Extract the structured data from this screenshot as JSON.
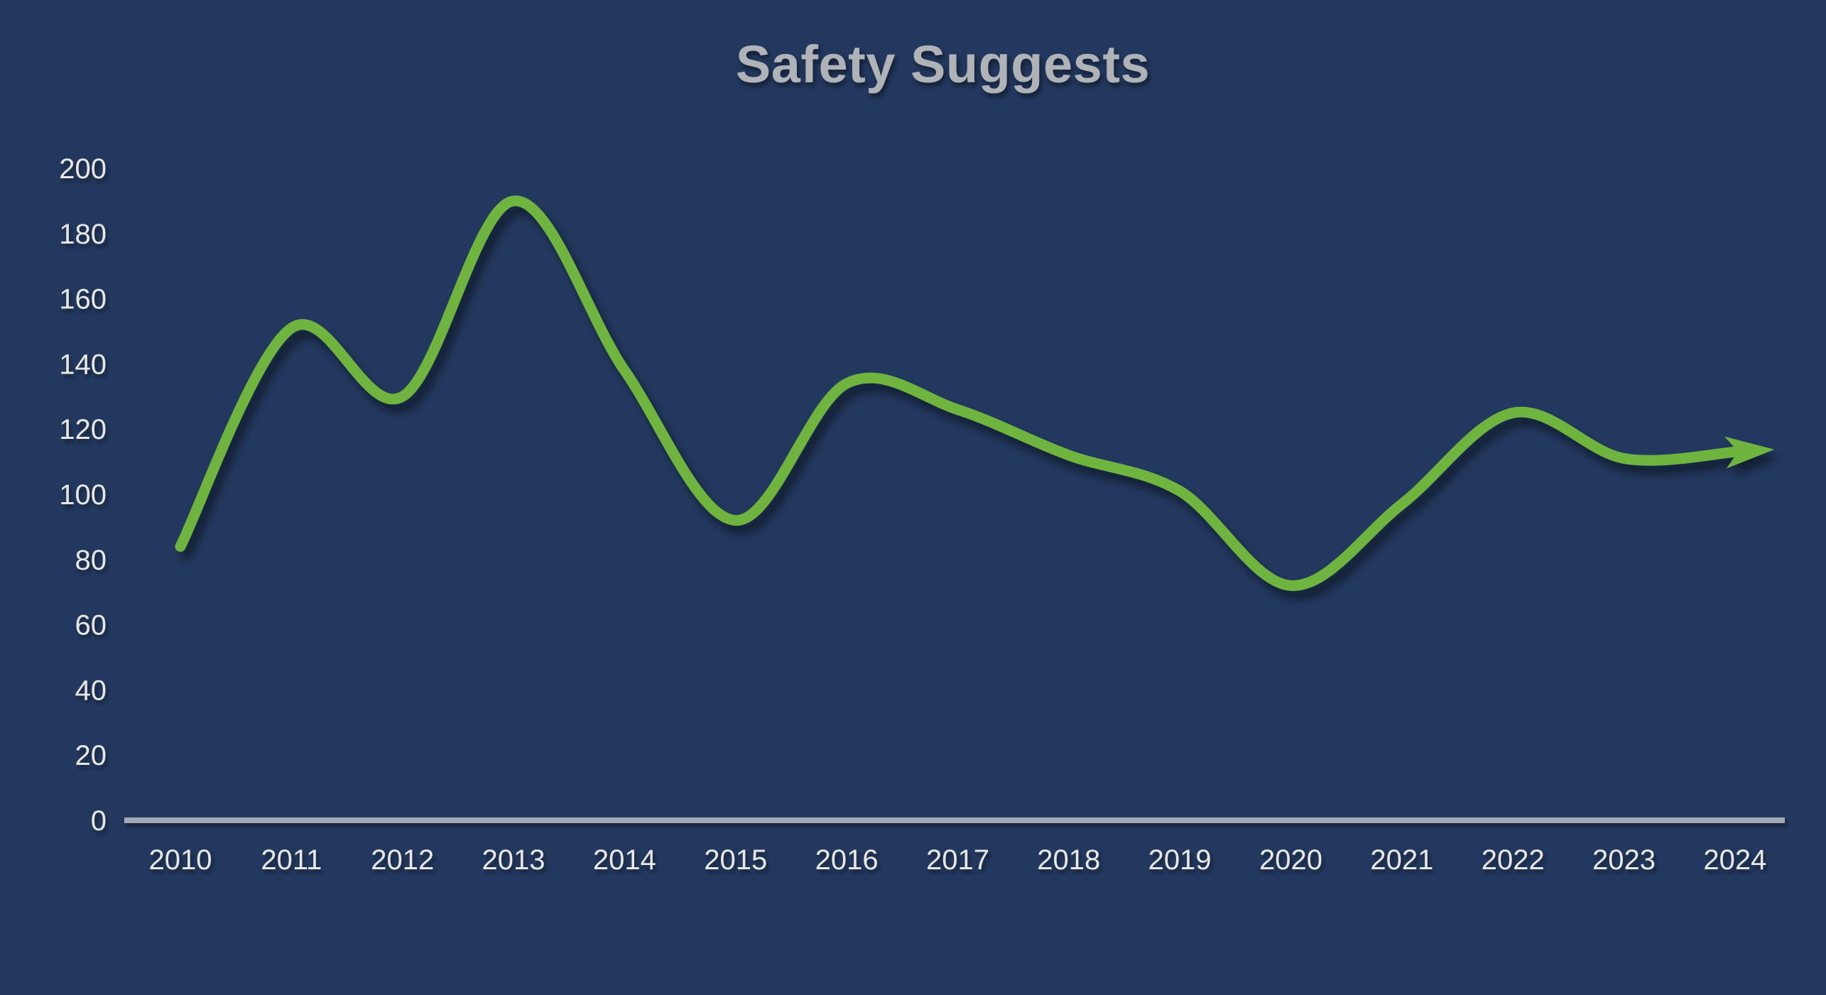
{
  "chart_data": {
    "type": "line",
    "title": "Safety Suggests",
    "x": [
      "2010",
      "2011",
      "2012",
      "2013",
      "2014",
      "2015",
      "2016",
      "2017",
      "2018",
      "2019",
      "2020",
      "2021",
      "2022",
      "2023",
      "2024"
    ],
    "series": [
      {
        "name": "Safety Suggests",
        "values": [
          84,
          151,
          130,
          190,
          138,
          92,
          134,
          126,
          112,
          101,
          72,
          97,
          125,
          111,
          113
        ]
      }
    ],
    "xlabel": "",
    "ylabel": "",
    "ylim": [
      0,
      200
    ],
    "yticks": [
      0,
      20,
      40,
      60,
      80,
      100,
      120,
      140,
      160,
      180,
      200
    ],
    "grid": false,
    "legend": "none",
    "smooth": true,
    "arrow_end": true,
    "colors": {
      "background": "#22385E",
      "line": "#70B43F",
      "axis_line": "#A3A9B5",
      "tick_label": "#E8E7E6",
      "title": "#AFB2B6"
    }
  }
}
